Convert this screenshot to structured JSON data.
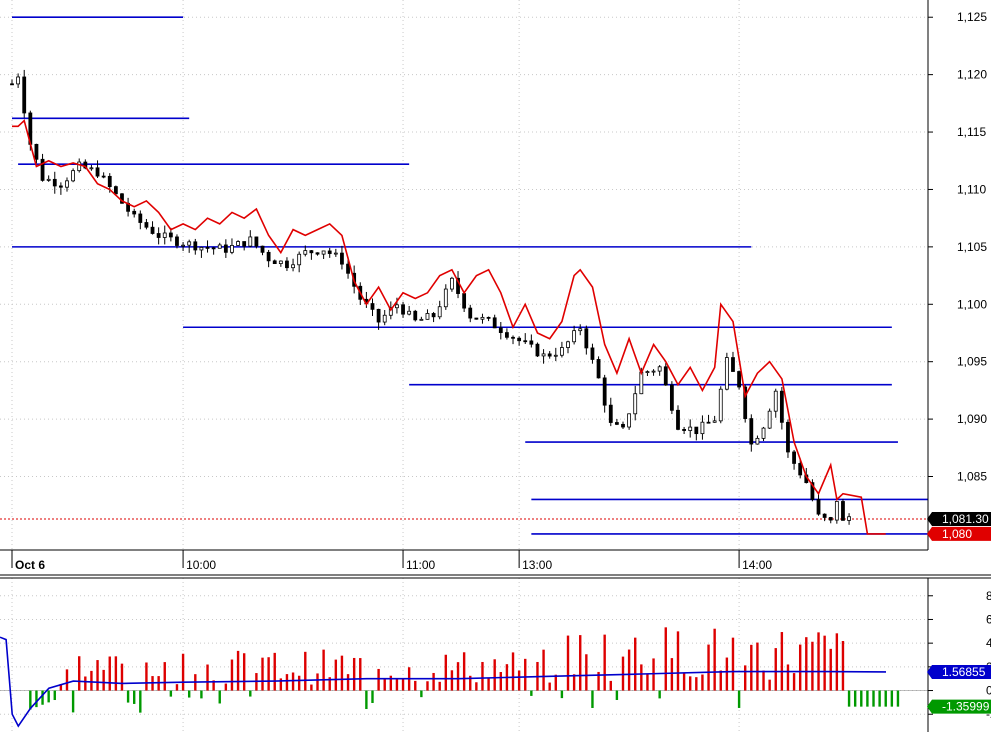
{
  "chart_data": [
    {
      "type": "candlestick",
      "panel": "price",
      "title": "",
      "y_ticks": [
        "1,125",
        "1,120",
        "1,115",
        "1,110",
        "1,105",
        "1,100",
        "1,095",
        "1,090",
        "1,085"
      ],
      "y_tick_values": [
        1125,
        1120,
        1115,
        1110,
        1105,
        1100,
        1095,
        1090,
        1085
      ],
      "ylim": [
        1078.6,
        1126.5
      ],
      "x_ticks": [
        {
          "label": "Oct 6",
          "bold": true,
          "slot": 0
        },
        {
          "label": "10:00",
          "bold": false,
          "slot": 28
        },
        {
          "label": "11:00",
          "bold": false,
          "slot": 64
        },
        {
          "label": "13:00",
          "bold": false,
          "slot": 83
        },
        {
          "label": "14:00",
          "bold": false,
          "slot": 119
        }
      ],
      "x_slots": 150,
      "grid": true,
      "price_path": [
        [
          0,
          1119.2
        ],
        [
          1,
          1120.0
        ],
        [
          3,
          1114.0
        ],
        [
          5,
          1111.0
        ],
        [
          8,
          1110.5
        ],
        [
          11,
          1112.0
        ],
        [
          14,
          1111.5
        ],
        [
          17,
          1109.5
        ],
        [
          20,
          1107.5
        ],
        [
          24,
          1106.0
        ],
        [
          27,
          1105.5
        ],
        [
          31,
          1105.0
        ],
        [
          35,
          1104.8
        ],
        [
          39,
          1105.6
        ],
        [
          42,
          1104.0
        ],
        [
          45,
          1103.5
        ],
        [
          48,
          1104.5
        ],
        [
          51,
          1104.8
        ],
        [
          54,
          1103.8
        ],
        [
          57,
          1100.5
        ],
        [
          60,
          1098.5
        ],
        [
          63,
          1100.0
        ],
        [
          66,
          1098.5
        ],
        [
          69,
          1099.0
        ],
        [
          72,
          1102.0
        ],
        [
          75,
          1099.0
        ],
        [
          78,
          1098.5
        ],
        [
          81,
          1097.5
        ],
        [
          84,
          1096.5
        ],
        [
          87,
          1095.5
        ],
        [
          90,
          1096.0
        ],
        [
          93,
          1098.0
        ],
        [
          96,
          1093.5
        ],
        [
          98,
          1089.5
        ],
        [
          100,
          1089.0
        ],
        [
          103,
          1094.0
        ],
        [
          106,
          1094.5
        ],
        [
          109,
          1089.5
        ],
        [
          112,
          1089.0
        ],
        [
          115,
          1090.0
        ],
        [
          117,
          1095.0
        ],
        [
          119,
          1093.0
        ],
        [
          121,
          1087.8
        ],
        [
          123,
          1089.5
        ],
        [
          125,
          1092.5
        ],
        [
          127,
          1087.0
        ],
        [
          130,
          1084.5
        ],
        [
          132,
          1081.5
        ],
        [
          134,
          1081.0
        ],
        [
          135,
          1083.0
        ],
        [
          136,
          1081.0
        ],
        [
          137,
          1081.5
        ]
      ],
      "series": [
        {
          "name": "",
          "color": "#e00000",
          "points": [
            [
              0,
              1115.5
            ],
            [
              1,
              1115.5
            ],
            [
              2,
              1116.0
            ],
            [
              4,
              1112.0
            ],
            [
              6,
              1112.5
            ],
            [
              8,
              1112.0
            ],
            [
              10,
              1112.3
            ],
            [
              12,
              1112.0
            ],
            [
              14,
              1110.5
            ],
            [
              16,
              1110.0
            ],
            [
              18,
              1109.0
            ],
            [
              20,
              1108.5
            ],
            [
              22,
              1109.0
            ],
            [
              24,
              1108.0
            ],
            [
              26,
              1106.5
            ],
            [
              28,
              1107.0
            ],
            [
              30,
              1106.5
            ],
            [
              32,
              1107.5
            ],
            [
              34,
              1107.0
            ],
            [
              36,
              1108.0
            ],
            [
              38,
              1107.5
            ],
            [
              40,
              1108.3
            ],
            [
              42,
              1106.0
            ],
            [
              44,
              1104.5
            ],
            [
              46,
              1106.5
            ],
            [
              48,
              1106.0
            ],
            [
              50,
              1106.5
            ],
            [
              52,
              1107.0
            ],
            [
              54,
              1106.0
            ],
            [
              56,
              1102.0
            ],
            [
              58,
              1100.0
            ],
            [
              60,
              1101.5
            ],
            [
              62,
              1099.5
            ],
            [
              64,
              1101.0
            ],
            [
              66,
              1100.5
            ],
            [
              68,
              1101.0
            ],
            [
              70,
              1102.5
            ],
            [
              72,
              1103.0
            ],
            [
              74,
              1101.0
            ],
            [
              76,
              1102.5
            ],
            [
              78,
              1103.0
            ],
            [
              80,
              1101.0
            ],
            [
              82,
              1098.0
            ],
            [
              84,
              1100.0
            ],
            [
              86,
              1097.5
            ],
            [
              88,
              1097.0
            ],
            [
              90,
              1098.5
            ],
            [
              92,
              1102.5
            ],
            [
              93,
              1103.0
            ],
            [
              95,
              1101.5
            ],
            [
              97,
              1096.5
            ],
            [
              99,
              1094.0
            ],
            [
              101,
              1097.0
            ],
            [
              103,
              1094.0
            ],
            [
              105,
              1096.5
            ],
            [
              107,
              1095.0
            ],
            [
              109,
              1093.0
            ],
            [
              111,
              1094.5
            ],
            [
              113,
              1092.5
            ],
            [
              115,
              1094.5
            ],
            [
              116,
              1100.0
            ],
            [
              118,
              1098.5
            ],
            [
              120,
              1092.0
            ],
            [
              122,
              1094.0
            ],
            [
              124,
              1095.0
            ],
            [
              126,
              1093.5
            ],
            [
              128,
              1088.0
            ],
            [
              130,
              1085.0
            ],
            [
              132,
              1083.5
            ],
            [
              134,
              1086.0
            ],
            [
              135,
              1083.0
            ],
            [
              136,
              1083.5
            ],
            [
              139,
              1083.2
            ],
            [
              140,
              1080.0
            ],
            [
              143,
              1080.0
            ]
          ]
        }
      ],
      "hlines": [
        {
          "y": 1125.0,
          "from": 0,
          "to": 28
        },
        {
          "y": 1116.2,
          "from": 0,
          "to": 29
        },
        {
          "y": 1112.2,
          "from": 1,
          "to": 65
        },
        {
          "y": 1105.0,
          "from": 0,
          "to": 121
        },
        {
          "y": 1098.0,
          "from": 28,
          "to": 144
        },
        {
          "y": 1093.0,
          "from": 65,
          "to": 144
        },
        {
          "y": 1088.0,
          "from": 84,
          "to": 145
        },
        {
          "y": 1083.0,
          "from": 85,
          "to": 150
        },
        {
          "y": 1080.0,
          "from": 85,
          "to": 150
        }
      ],
      "dotted_line_y": 1081.3,
      "badges": [
        {
          "text": "1,081.30",
          "color": "#000000",
          "y": 1081.3
        },
        {
          "text": "1,080",
          "color": "#e00000",
          "y": 1080.0
        }
      ]
    },
    {
      "type": "histogram",
      "panel": "indicator",
      "y_ticks": [
        "8",
        "6",
        "4",
        "2",
        "0",
        "-2"
      ],
      "y_tick_values": [
        8,
        6,
        4,
        2,
        0,
        -2
      ],
      "ylim": [
        -3.5,
        9.5
      ],
      "positive_color": "#dd0000",
      "negative_color": "#009900",
      "signal_color": "#0000cc",
      "signal_line": [
        [
          0,
          4.5
        ],
        [
          1,
          4.3
        ],
        [
          2,
          -2.0
        ],
        [
          3,
          -3.0
        ],
        [
          5,
          -1.5
        ],
        [
          8,
          0.2
        ],
        [
          12,
          0.8
        ],
        [
          20,
          0.6
        ],
        [
          30,
          0.7
        ],
        [
          45,
          0.8
        ],
        [
          60,
          1.0
        ],
        [
          75,
          1.0
        ],
        [
          90,
          1.2
        ],
        [
          105,
          1.4
        ],
        [
          120,
          1.6
        ],
        [
          135,
          1.6
        ],
        [
          145,
          1.57
        ]
      ],
      "badges": [
        {
          "text": "1.56855",
          "color": "#0000cc",
          "y": 1.56855
        },
        {
          "text": "-1.35999",
          "color": "#009900",
          "y": -1.35999
        }
      ]
    }
  ]
}
